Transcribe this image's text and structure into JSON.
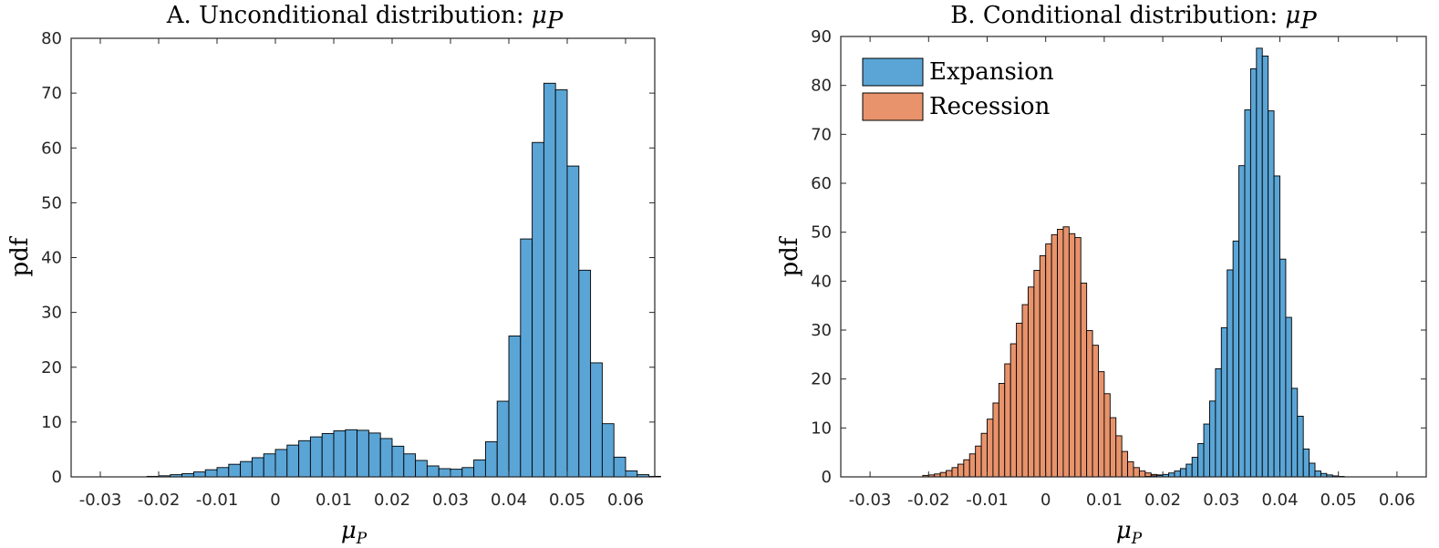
{
  "chart_data": [
    {
      "type": "bar",
      "title": "A. Unconditional distribution:",
      "title_math": "μ",
      "title_math_sub": "P",
      "xlabel": "μ",
      "xlabel_sub": "P",
      "ylabel": "pdf",
      "xlim": [
        -0.035,
        0.065
      ],
      "ylim": [
        0,
        80
      ],
      "xticks": [
        -0.03,
        -0.02,
        -0.01,
        0,
        0.01,
        0.02,
        0.03,
        0.04,
        0.05,
        0.06
      ],
      "xticklabels": [
        "-0.03",
        "-0.02",
        "-0.01",
        "0",
        "0.01",
        "0.02",
        "0.03",
        "0.04",
        "0.05",
        "0.06"
      ],
      "yticks": [
        0,
        10,
        20,
        30,
        40,
        50,
        60,
        70,
        80
      ],
      "yticklabels": [
        "0",
        "10",
        "20",
        "30",
        "40",
        "50",
        "60",
        "70",
        "80"
      ],
      "bin_width": 0.002,
      "series": [
        {
          "name": "Unconditional",
          "color": "#5aa5d6",
          "edges_start": -0.022,
          "values": [
            0.1,
            0.2,
            0.4,
            0.6,
            0.9,
            1.3,
            1.7,
            2.3,
            2.8,
            3.5,
            4.2,
            5.0,
            5.8,
            6.6,
            7.3,
            7.9,
            8.4,
            8.6,
            8.5,
            8.0,
            7.0,
            5.6,
            4.2,
            3.0,
            2.0,
            1.5,
            1.4,
            1.7,
            3.1,
            6.4,
            13.8,
            25.7,
            43.4,
            61.0,
            71.8,
            70.6,
            56.7,
            37.7,
            20.8,
            9.7,
            3.6,
            1.1,
            0.4,
            0.1
          ]
        }
      ]
    },
    {
      "type": "bar",
      "title": "B. Conditional distribution:",
      "title_math": "μ",
      "title_math_sub": "P",
      "xlabel": "μ",
      "xlabel_sub": "P",
      "ylabel": "pdf",
      "xlim": [
        -0.035,
        0.065
      ],
      "ylim": [
        0,
        90
      ],
      "xticks": [
        -0.03,
        -0.02,
        -0.01,
        0,
        0.01,
        0.02,
        0.03,
        0.04,
        0.05,
        0.06
      ],
      "xticklabels": [
        "-0.03",
        "-0.02",
        "-0.01",
        "0",
        "0.01",
        "0.02",
        "0.03",
        "0.04",
        "0.05",
        "0.06"
      ],
      "yticks": [
        0,
        10,
        20,
        30,
        40,
        50,
        60,
        70,
        80,
        90
      ],
      "yticklabels": [
        "0",
        "10",
        "20",
        "30",
        "40",
        "50",
        "60",
        "70",
        "80",
        "90"
      ],
      "bin_width": 0.001,
      "legend": {
        "location": "top-left",
        "entries": [
          "Expansion",
          "Recession"
        ]
      },
      "series": [
        {
          "name": "Recession",
          "color": "#e8936c",
          "edges_start": -0.021,
          "values": [
            0.3,
            0.4,
            0.6,
            0.9,
            1.3,
            1.9,
            2.6,
            3.5,
            4.7,
            6.3,
            8.9,
            11.8,
            15.1,
            19.1,
            23.1,
            27.2,
            31.4,
            35.2,
            38.8,
            42.2,
            45.2,
            47.6,
            49.5,
            50.6,
            51.1,
            49.7,
            48.9,
            39.6,
            29.9,
            26.9,
            21.5,
            17.0,
            12.1,
            8.4,
            5.2,
            3.1,
            1.9,
            1.2,
            0.8,
            0.5,
            0.4,
            0.2,
            0.1
          ]
        },
        {
          "name": "Expansion",
          "color": "#5aa5d6",
          "edges_start": 0.017,
          "values": [
            0.1,
            0.2,
            0.3,
            0.5,
            0.8,
            1.2,
            1.7,
            2.6,
            4.0,
            6.8,
            10.8,
            15.5,
            22.1,
            30.5,
            42.3,
            48.2,
            63.6,
            75.0,
            83.4,
            87.6,
            86.0,
            74.8,
            61.5,
            44.5,
            32.6,
            18.1,
            12.4,
            5.7,
            2.8,
            1.2,
            0.7,
            0.4,
            0.2,
            0.1
          ]
        }
      ]
    }
  ]
}
